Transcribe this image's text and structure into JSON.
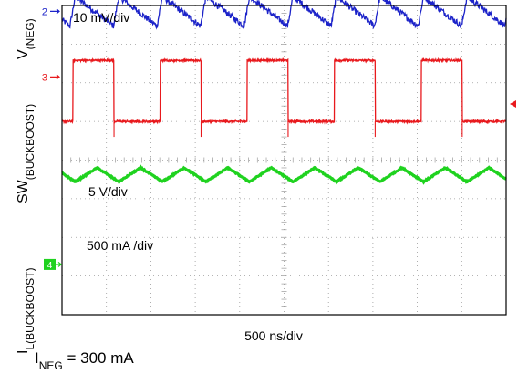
{
  "chart_data": {
    "type": "line",
    "grid": true,
    "divisions": {
      "horizontal": 10,
      "vertical": 8
    },
    "time_scale": "500 ns/div",
    "condition": {
      "main": "I",
      "sub": "NEG",
      "rest": " = 300 mA"
    },
    "series": [
      {
        "name": "V(NEG)",
        "channel": "2",
        "color": "#1c23c9",
        "axis_label": {
          "main": "V",
          "sub": "(NEG)"
        },
        "scale": "10 mV/div",
        "waveform": "sawtooth ripple",
        "period_div": 0.98,
        "phase_div": 0.18,
        "offset_div": 7.85,
        "amplitude_div": 0.38
      },
      {
        "name": "SW(BUCKBOOST)",
        "channel": "3",
        "color": "#e8191d",
        "axis_label": {
          "main": "SW",
          "sub": "(BUCKBOOST)"
        },
        "scale": "5 V/div",
        "waveform": "square",
        "period_div": 1.96,
        "phase_div": 0.25,
        "duty": 0.47,
        "high_div": 6.58,
        "low_div": 5.0
      },
      {
        "name": "IL(BUCKBOOST)",
        "channel": "4",
        "color": "#1fd21f",
        "axis_label": {
          "main": "I",
          "sub": "L(BUCKBOOST)"
        },
        "scale": "500 mA /div",
        "waveform": "triangle",
        "period_div": 0.98,
        "phase_div": 0.3,
        "offset_div": 3.62,
        "amplitude_div": 0.18
      }
    ]
  }
}
